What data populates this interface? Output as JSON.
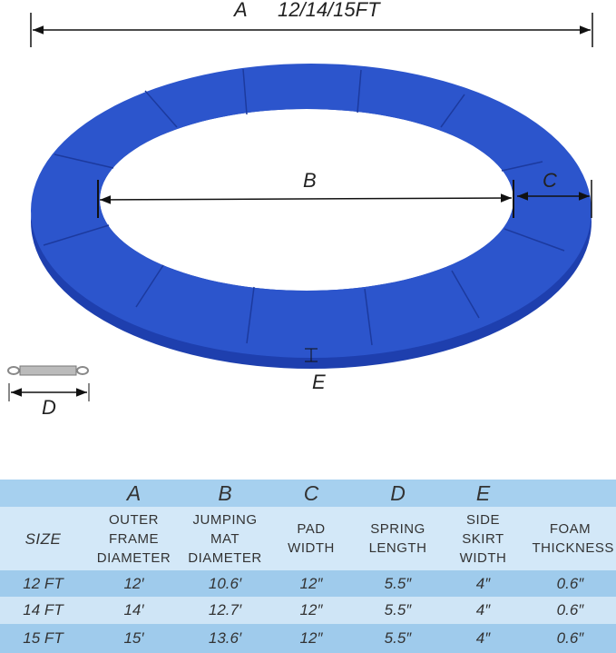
{
  "diagram": {
    "labels": {
      "a": "A",
      "a_size": "12/14/15FT",
      "b": "B",
      "c": "C",
      "d": "D",
      "e": "E"
    }
  },
  "table": {
    "letters": [
      "A",
      "B",
      "C",
      "D",
      "E"
    ],
    "header": [
      "SIZE",
      "OUTER FRAME DIAMETER",
      "JUMPING MAT DIAMETER",
      "PAD WIDTH",
      "SPRING LENGTH",
      "SIDE SKIRT WIDTH",
      "FOAM THICKNESS"
    ],
    "rows": [
      [
        "12 FT",
        "12′",
        "10.6′",
        "12″",
        "5.5″",
        "4″",
        "0.6″"
      ],
      [
        "14 FT",
        "14′",
        "12.7′",
        "12″",
        "5.5″",
        "4″",
        "0.6″"
      ],
      [
        "15 FT",
        "15′",
        "13.6′",
        "12″",
        "5.5″",
        "4″",
        "0.6″"
      ]
    ]
  }
}
